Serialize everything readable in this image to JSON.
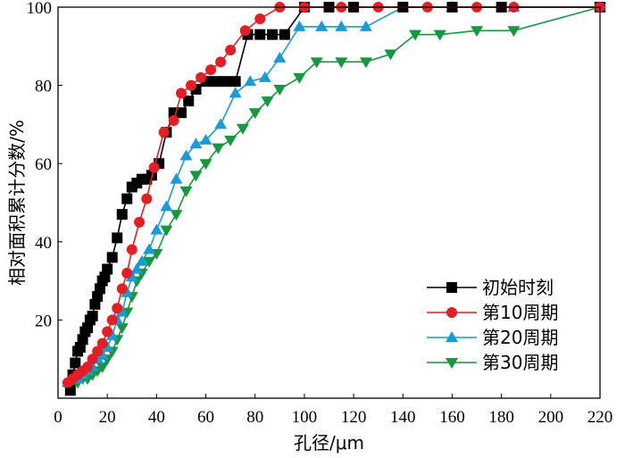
{
  "chart_data": {
    "type": "line",
    "xlabel": "孔径/μm",
    "ylabel": "相对面积累计分数/%",
    "xlim": [
      0,
      220
    ],
    "ylim": [
      0,
      100
    ],
    "xticks": [
      0,
      20,
      40,
      60,
      80,
      100,
      120,
      140,
      160,
      180,
      200,
      220
    ],
    "yticks": [
      20,
      40,
      60,
      80,
      100
    ],
    "grid": false,
    "legend_position": "bottom-right",
    "series": [
      {
        "name": "初始时刻",
        "color": "#000000",
        "marker": "square",
        "x": [
          5,
          6,
          7,
          8,
          9,
          10,
          11,
          12,
          13,
          14,
          15,
          16,
          17,
          18,
          19,
          20,
          22,
          24,
          26,
          28,
          30,
          32,
          34,
          36,
          38,
          41,
          44,
          47,
          50,
          53,
          56,
          60,
          64,
          68,
          72,
          77,
          82,
          87,
          92,
          100,
          110,
          120,
          140,
          160,
          180,
          220
        ],
        "y": [
          2,
          6,
          9,
          12,
          13,
          15,
          17,
          18,
          20,
          21,
          24,
          26,
          28,
          30,
          31,
          33,
          36,
          41,
          47,
          51,
          54,
          55,
          56,
          56,
          57,
          60,
          68,
          73,
          73,
          76,
          79,
          81,
          81,
          81,
          81,
          93,
          93,
          93,
          93,
          100,
          100,
          100,
          100,
          100,
          100,
          100
        ]
      },
      {
        "name": "第10周期",
        "color": "#e31e24",
        "marker": "circle",
        "x": [
          4,
          6,
          8,
          10,
          12,
          14,
          16,
          18,
          20,
          22,
          24,
          26,
          28,
          30,
          33,
          36,
          39,
          43,
          47,
          50,
          54,
          58,
          62,
          66,
          70,
          76,
          82,
          90,
          100,
          115,
          130,
          150,
          170,
          185,
          220
        ],
        "y": [
          4,
          5,
          6,
          7,
          8,
          10,
          12,
          14,
          17,
          20,
          23,
          28,
          32,
          38,
          45,
          51,
          59,
          68,
          71,
          78,
          80,
          82,
          84,
          86,
          89,
          94,
          97,
          100,
          100,
          100,
          100,
          100,
          100,
          100,
          100
        ]
      },
      {
        "name": "第20周期",
        "color": "#1a9bd7",
        "marker": "triangle-up",
        "x": [
          4,
          6,
          8,
          10,
          12,
          14,
          16,
          18,
          20,
          22,
          24,
          26,
          28,
          30,
          32,
          34,
          37,
          40,
          44,
          48,
          52,
          56,
          60,
          66,
          72,
          78,
          84,
          90,
          98,
          107,
          115,
          125,
          140,
          160,
          185,
          220
        ],
        "y": [
          4,
          5,
          5,
          6,
          7,
          8,
          10,
          11,
          13,
          16,
          20,
          22,
          27,
          31,
          33,
          35,
          38,
          43,
          49,
          56,
          62,
          65,
          66,
          70,
          78,
          81,
          82,
          87,
          95,
          95,
          95,
          95,
          100,
          100,
          100,
          100
        ]
      },
      {
        "name": "第30周期",
        "color": "#17973f",
        "marker": "triangle-down",
        "x": [
          4,
          6,
          8,
          10,
          12,
          14,
          16,
          18,
          20,
          22,
          24,
          26,
          28,
          30,
          32,
          34,
          37,
          40,
          44,
          48,
          52,
          56,
          60,
          65,
          70,
          75,
          80,
          85,
          90,
          98,
          105,
          115,
          125,
          135,
          145,
          155,
          170,
          185,
          220
        ],
        "y": [
          3,
          4,
          4,
          5,
          5,
          6,
          7,
          8,
          10,
          12,
          15,
          18,
          22,
          26,
          30,
          32,
          35,
          37,
          43,
          47,
          53,
          57,
          60,
          64,
          66,
          69,
          73,
          76,
          79,
          82,
          86,
          86,
          86,
          88,
          93,
          93,
          94,
          94,
          100
        ]
      }
    ]
  }
}
